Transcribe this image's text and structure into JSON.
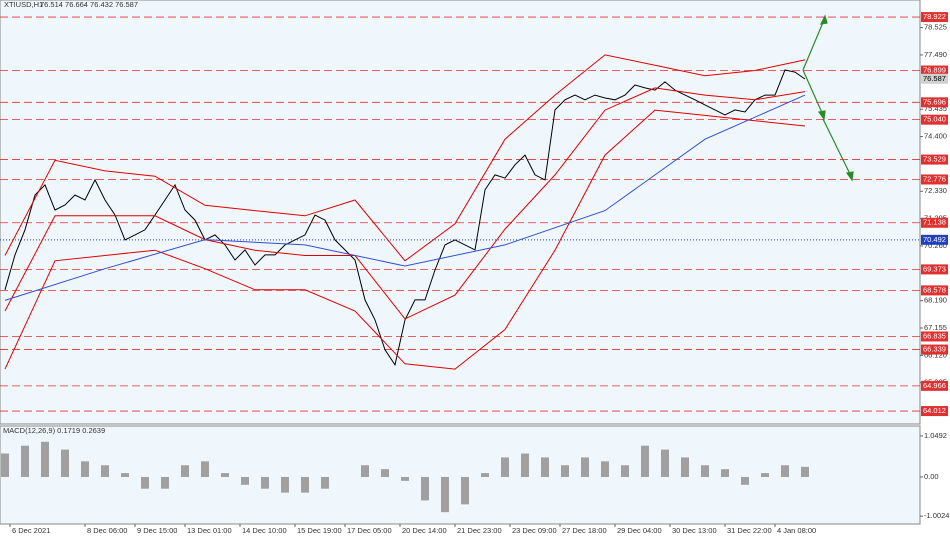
{
  "chart_data": {
    "type": "line",
    "title": "XTIUSD,H1",
    "ohlc": "76.514 76.664 76.432 76.587",
    "xlim": [
      -0.5,
      91.5
    ],
    "xticks": [
      {
        "value": 0.5,
        "label": "6 Dec 2021"
      },
      {
        "value": 8,
        "label": "8 Dec 06:00"
      },
      {
        "value": 13,
        "label": "9 Dec 15:00"
      },
      {
        "value": 18,
        "label": "13 Dec 01:00"
      },
      {
        "value": 23.5,
        "label": "14 Dec 10:00"
      },
      {
        "value": 29,
        "label": "15 Dec 19:00"
      },
      {
        "value": 34,
        "label": "17 Dec 05:00"
      },
      {
        "value": 39.5,
        "label": "20 Dec 14:00"
      },
      {
        "value": 45,
        "label": "21 Dec 23:00"
      },
      {
        "value": 50.5,
        "label": "23 Dec 09:00"
      },
      {
        "value": 55.5,
        "label": "27 Dec 18:00"
      },
      {
        "value": 61,
        "label": "29 Dec 04:00"
      },
      {
        "value": 66.5,
        "label": "30 Dec 13:00"
      },
      {
        "value": 72,
        "label": "31 Dec 22:00"
      },
      {
        "value": 77,
        "label": "4 Jan 08:00"
      }
    ],
    "ylim": [
      63.56,
      79.19
    ],
    "yticks": [
      78.525,
      {
        "value": 77.49,
        "label": "77.490"
      },
      75.435,
      {
        "value": 74.4,
        "label": "74.400"
      },
      {
        "value": 72.33,
        "label": "72.330"
      },
      71.295,
      {
        "value": 70.26,
        "label": "70.260"
      },
      {
        "value": 68.19,
        "label": "68.190"
      },
      67.155,
      {
        "value": 66.12,
        "label": "66.120"
      },
      65.085
    ],
    "series": [
      {
        "color": "#000000",
        "values": [
          68.6,
          69.92,
          70.87,
          72.19,
          72.57,
          71.62,
          71.81,
          72.19,
          72.0,
          72.76,
          72.0,
          71.43,
          70.49,
          70.68,
          70.87,
          71.43,
          72.0,
          72.57,
          71.62,
          71.24,
          70.49,
          70.68,
          70.3,
          69.73,
          70.11,
          69.54,
          69.92,
          69.92,
          70.3,
          70.49,
          70.68,
          71.43,
          71.24,
          70.49,
          70.11,
          69.73,
          68.22,
          67.46,
          66.33,
          65.76,
          67.46,
          68.22,
          68.22,
          69.35,
          70.3,
          70.49,
          70.3,
          70.11,
          72.38,
          72.95,
          72.83,
          73.33,
          73.7,
          72.95,
          72.76,
          75.41,
          75.79,
          75.97,
          75.79,
          75.97,
          75.86,
          75.79,
          75.97,
          76.35,
          76.24,
          76.16,
          76.47,
          76.16,
          75.97,
          75.79,
          75.6,
          75.41,
          75.22,
          75.41,
          75.33,
          75.79,
          75.97,
          75.97,
          76.92,
          76.84,
          76.58
        ]
      },
      {
        "color": "#e00000",
        "x": [
          0,
          5,
          10,
          15,
          20,
          25,
          30,
          35,
          40,
          45,
          50,
          55,
          60,
          65,
          70,
          75,
          80
        ],
        "values": [
          69.9,
          73.5,
          73.1,
          72.9,
          71.8,
          71.6,
          71.4,
          72.0,
          69.7,
          71.1,
          74.3,
          75.97,
          77.49,
          77.1,
          76.7,
          76.9,
          77.3
        ]
      },
      {
        "color": "#e00000",
        "x": [
          0,
          5,
          10,
          15,
          20,
          25,
          30,
          35,
          40,
          45,
          50,
          55,
          60,
          65,
          70,
          75,
          80
        ],
        "values": [
          67.8,
          71.4,
          71.4,
          71.4,
          70.5,
          70.1,
          69.9,
          69.9,
          67.5,
          68.4,
          70.9,
          72.95,
          75.4,
          76.24,
          75.97,
          75.79,
          76.1
        ]
      },
      {
        "color": "#e00000",
        "x": [
          0,
          5,
          10,
          15,
          20,
          25,
          30,
          35,
          40,
          45,
          50,
          55,
          60,
          65,
          70,
          75,
          80
        ],
        "values": [
          65.6,
          69.7,
          69.9,
          70.1,
          69.4,
          68.6,
          68.6,
          67.8,
          65.8,
          65.6,
          67.1,
          70.1,
          73.7,
          75.4,
          75.2,
          75.0,
          74.8
        ]
      },
      {
        "color": "#3050d0",
        "x": [
          0,
          10,
          20,
          30,
          40,
          50,
          60,
          70,
          80
        ],
        "values": [
          68.2,
          69.4,
          70.5,
          70.3,
          69.5,
          70.3,
          71.6,
          74.3,
          75.97
        ]
      }
    ],
    "levels": [
      78.922,
      76.899,
      75.696,
      {
        "value": 75.04,
        "label": "75.040"
      },
      73.529,
      72.776,
      71.138,
      69.373,
      68.578,
      66.835,
      66.339,
      64.966,
      64.012
    ],
    "level_color": "#e03030",
    "blue_level": 70.492,
    "blue_level_color": "#2040c0",
    "current_price": 76.587,
    "macd": {
      "title": "MACD(12,26,9) 0.1719 0.2639",
      "ylim": [
        -1.1,
        1.15
      ],
      "yticks": [
        1.0492,
        {
          "value": 0,
          "label": "0.00"
        },
        -1.0024
      ],
      "color": "#a0a0a0",
      "x": [
        0,
        2,
        4,
        6,
        8,
        10,
        12,
        14,
        16,
        18,
        20,
        22,
        24,
        26,
        28,
        30,
        32,
        34,
        36,
        38,
        40,
        42,
        44,
        46,
        48,
        50,
        52,
        54,
        56,
        58,
        60,
        62,
        64,
        66,
        68,
        70,
        72,
        74,
        76,
        78,
        80
      ],
      "values": [
        0.6,
        0.8,
        0.9,
        0.7,
        0.4,
        0.3,
        0.1,
        -0.3,
        -0.3,
        0.3,
        0.4,
        0.1,
        -0.2,
        -0.3,
        -0.4,
        -0.4,
        -0.3,
        0.0,
        0.3,
        0.2,
        -0.1,
        -0.6,
        -0.9,
        -0.7,
        0.1,
        0.5,
        0.6,
        0.5,
        0.3,
        0.5,
        0.4,
        0.3,
        0.8,
        0.7,
        0.5,
        0.3,
        0.2,
        -0.2,
        0.1,
        0.3,
        0.26
      ]
    }
  }
}
